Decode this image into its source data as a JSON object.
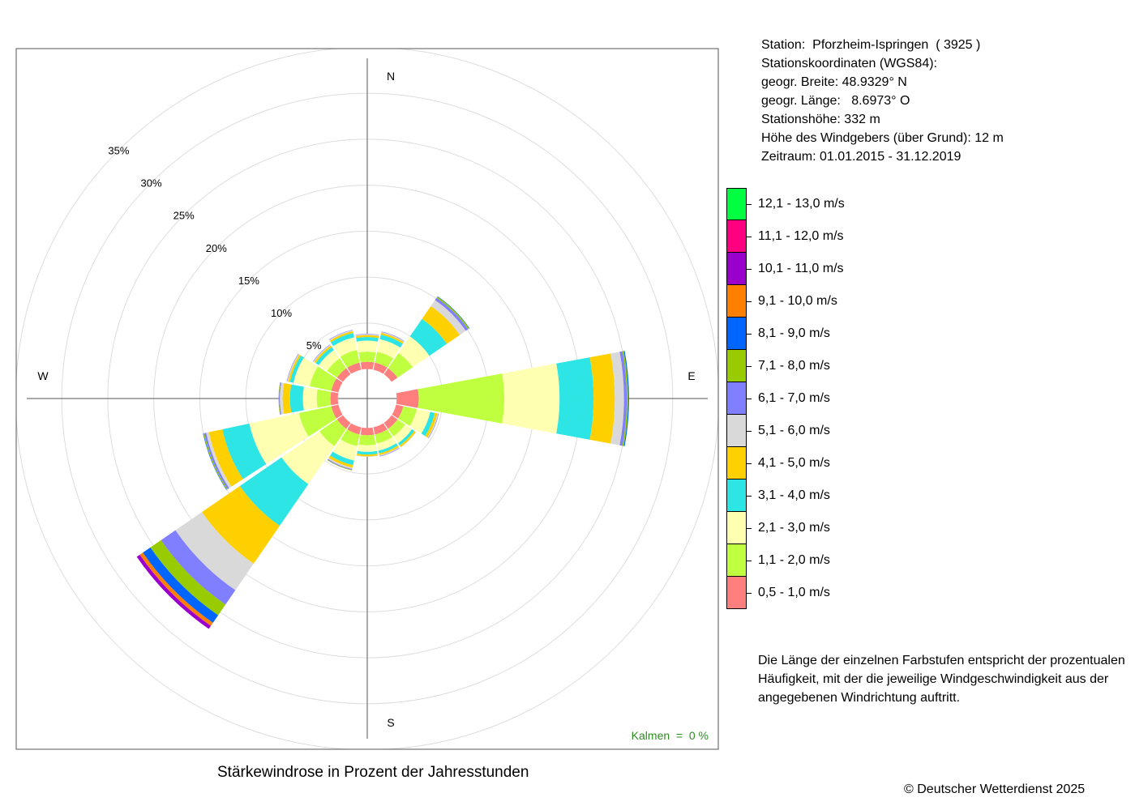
{
  "chart_data": {
    "type": "windrose",
    "title": "Stärkewindrose in Prozent der Jahresstunden",
    "directions": [
      "N",
      "NNE",
      "NE",
      "ENE",
      "E",
      "ESE",
      "SE",
      "SSE",
      "S",
      "SSW",
      "SW",
      "WSW",
      "W",
      "WNW",
      "NW",
      "NNW"
    ],
    "compass_labels": {
      "N": "N",
      "E": "E",
      "S": "S",
      "W": "W"
    },
    "speed_classes": [
      {
        "label": "0,5 - 1,0 m/s",
        "color": "#FF7F7F"
      },
      {
        "label": "1,1 - 2,0 m/s",
        "color": "#BFFF3F"
      },
      {
        "label": "2,1 - 3,0 m/s",
        "color": "#FFFFB2"
      },
      {
        "label": "3,1 - 4,0 m/s",
        "color": "#2EE5E5"
      },
      {
        "label": "4,1 - 5,0 m/s",
        "color": "#FFD000"
      },
      {
        "label": "5,1 - 6,0 m/s",
        "color": "#D9D9D9"
      },
      {
        "label": "6,1 - 7,0 m/s",
        "color": "#7F7FFF"
      },
      {
        "label": "7,1 - 8,0 m/s",
        "color": "#99CC00"
      },
      {
        "label": "8,1 - 9,0 m/s",
        "color": "#0066FF"
      },
      {
        "label": "9,1 - 10,0 m/s",
        "color": "#FF8000"
      },
      {
        "label": "10,1 - 11,0 m/s",
        "color": "#9900CC"
      },
      {
        "label": "11,1 - 12,0 m/s",
        "color": "#FF0080"
      },
      {
        "label": "12,1 - 13,0 m/s",
        "color": "#00FF40"
      }
    ],
    "rings_percent": [
      5,
      10,
      15,
      20,
      25,
      30,
      35
    ],
    "ring_labels": [
      "5%",
      "10%",
      "15%",
      "20%",
      "25%",
      "30%",
      "35%"
    ],
    "inner_offset_percent": 3.2,
    "frequencies_percent": [
      [
        0.8,
        1.1,
        1.2,
        0.4,
        0.2,
        0.1,
        0.05,
        0,
        0,
        0,
        0,
        0,
        0
      ],
      [
        0.8,
        1.2,
        1.4,
        0.5,
        0.2,
        0.1,
        0.05,
        0,
        0,
        0,
        0,
        0,
        0
      ],
      [
        0.8,
        2.0,
        2.2,
        2.3,
        1.7,
        0.8,
        0.3,
        0.15,
        0.05,
        0,
        0,
        0,
        0
      ],
      [
        0,
        0,
        0,
        0,
        0,
        0,
        0,
        0,
        0,
        0,
        0,
        0,
        0
      ],
      [
        2.4,
        9.3,
        6.0,
        3.7,
        2.3,
        1.0,
        0.3,
        0.15,
        0.1,
        0,
        0,
        0,
        0
      ],
      [
        0.8,
        1.5,
        1.5,
        0.5,
        0.3,
        0.1,
        0.05,
        0,
        0,
        0,
        0,
        0,
        0
      ],
      [
        0.8,
        1.0,
        0.9,
        0.3,
        0.2,
        0.05,
        0,
        0,
        0,
        0,
        0,
        0,
        0
      ],
      [
        0.8,
        1.0,
        0.8,
        0.3,
        0.2,
        0.1,
        0.05,
        0,
        0,
        0,
        0,
        0,
        0
      ],
      [
        0.8,
        1.1,
        0.7,
        0.3,
        0.2,
        0.05,
        0,
        0,
        0,
        0,
        0,
        0,
        0
      ],
      [
        0.8,
        1.3,
        1.6,
        0.5,
        0.3,
        0.15,
        0.1,
        0.05,
        0,
        0,
        0,
        0,
        0
      ],
      [
        0.8,
        2.3,
        5.0,
        5.5,
        5.0,
        3.5,
        1.9,
        1.4,
        1.0,
        0.4,
        0.4,
        0,
        0
      ],
      [
        0.8,
        3.6,
        5.5,
        3.0,
        1.5,
        0.3,
        0.2,
        0.1,
        0.05,
        0,
        0,
        0,
        0
      ],
      [
        0.8,
        1.5,
        1.5,
        1.4,
        0.8,
        0.3,
        0.1,
        0.05,
        0,
        0,
        0,
        0,
        0
      ],
      [
        0.8,
        2.4,
        1.8,
        0.4,
        0.2,
        0.1,
        0.05,
        0,
        0,
        0,
        0,
        0,
        0
      ],
      [
        0.8,
        1.3,
        1.1,
        0.4,
        0.2,
        0.1,
        0.05,
        0,
        0,
        0,
        0,
        0,
        0
      ],
      [
        0.8,
        1.4,
        1.4,
        0.5,
        0.2,
        0.1,
        0.05,
        0,
        0,
        0,
        0,
        0,
        0
      ]
    ],
    "calm_label": "Kalmen  =  0 %",
    "grid": true
  },
  "station": {
    "line1": "Station:  Pforzheim-Ispringen  ( 3925 )",
    "line2": "Stationskoordinaten (WGS84):",
    "line3": "geogr. Breite: 48.9329° N",
    "line4": "geogr. Länge:   8.6973° O",
    "line5": "Stationshöhe: 332 m",
    "line6": "Höhe des Windgebers (über Grund): 12 m",
    "line7": "Zeitraum: 01.01.2015 - 31.12.2019"
  },
  "note": "Die Länge der einzelnen Farbstufen entspricht der prozentualen Häufigkeit, mit der die jeweilige Windgeschwindigkeit aus der angegebenen Windrichtung auftritt.",
  "copyright": "© Deutscher Wetterdienst  2025"
}
